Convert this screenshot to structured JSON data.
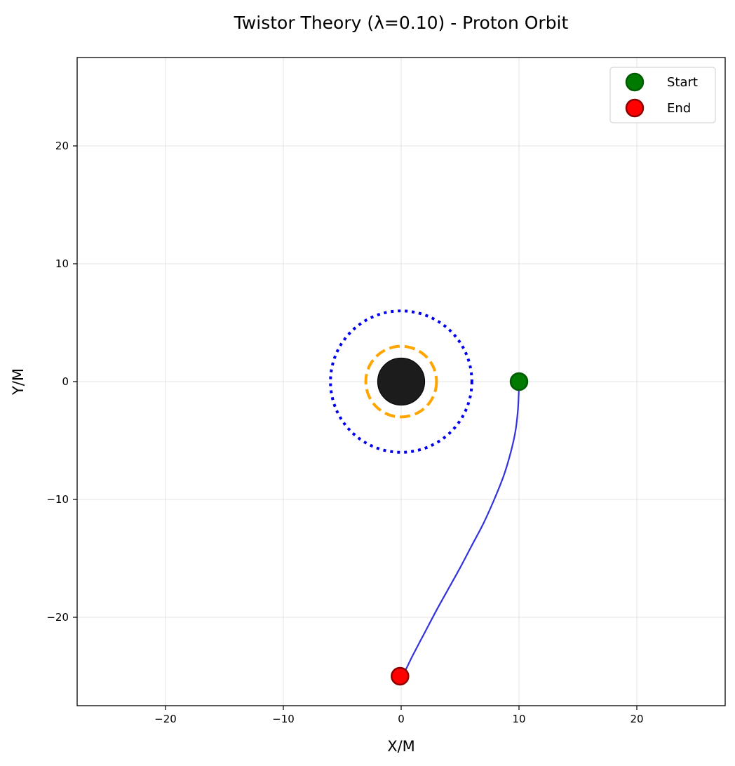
{
  "chart_data": {
    "type": "scatter",
    "title": "Twistor Theory (λ=0.10) - Proton Orbit",
    "xlabel": "X/M",
    "ylabel": "Y/M",
    "xlim": [
      -27.5,
      27.5
    ],
    "ylim": [
      -27.5,
      27.5
    ],
    "xticks": [
      -20,
      -10,
      0,
      10,
      20
    ],
    "yticks": [
      -20,
      -10,
      0,
      10,
      20
    ],
    "xtick_labels": [
      "−20",
      "−10",
      "0",
      "10",
      "20"
    ],
    "ytick_labels": [
      "−20",
      "−10",
      "0",
      "10",
      "20"
    ],
    "grid": true,
    "legend_position": "top-right",
    "black_hole": {
      "center": [
        0,
        0
      ],
      "radius": 2.0,
      "color": "#1c1c1c"
    },
    "photon_sphere": {
      "radius": 3.0,
      "color": "#ffa500",
      "style": "dashed"
    },
    "isco": {
      "radius": 6.0,
      "color": "#0000ee",
      "style": "dotted"
    },
    "orbit": {
      "color": "#3333dd",
      "x": [
        10.0,
        9.98,
        9.9,
        9.7,
        9.3,
        8.7,
        7.9,
        7.0,
        6.0,
        5.0,
        4.0,
        3.0,
        2.0,
        1.0,
        0.3,
        -0.1
      ],
      "y": [
        0.0,
        -1.0,
        -2.5,
        -4.2,
        -6.0,
        -8.0,
        -10.0,
        -12.0,
        -13.9,
        -15.8,
        -17.6,
        -19.4,
        -21.3,
        -23.2,
        -24.6,
        -25.0
      ]
    },
    "series": [
      {
        "name": "Start",
        "x": 10.0,
        "y": 0.0,
        "color": "#007a00",
        "edge": "#005a00"
      },
      {
        "name": "End",
        "x": -0.1,
        "y": -25.0,
        "color": "#ff0000",
        "edge": "#8b0000"
      }
    ]
  }
}
